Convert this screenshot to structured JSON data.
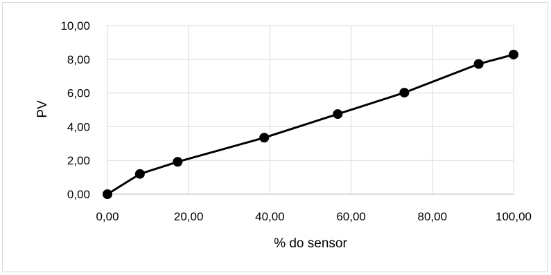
{
  "chart_data": {
    "type": "scatter",
    "title": "",
    "xlabel": "% do sensor",
    "ylabel": "PV",
    "xlim": [
      0,
      100
    ],
    "ylim": [
      0,
      10
    ],
    "x_tick_labels": [
      "0,00",
      "20,00",
      "40,00",
      "60,00",
      "80,00",
      "100,00"
    ],
    "y_tick_labels": [
      "0,00",
      "2,00",
      "4,00",
      "6,00",
      "8,00",
      "10,00"
    ],
    "x_ticks": [
      0,
      20,
      40,
      60,
      80,
      100
    ],
    "y_ticks": [
      0,
      2,
      4,
      6,
      8,
      10
    ],
    "grid": "vertical-and-horizontal",
    "legend": "none",
    "series": [
      {
        "x": [
          0,
          8,
          17.3,
          38.6,
          56.7,
          73.1,
          91.4,
          100
        ],
        "y": [
          0,
          1.2,
          1.92,
          3.35,
          4.75,
          6.02,
          7.72,
          8.28
        ],
        "line_color": "#000000",
        "marker_color": "#000000",
        "marker": "circle"
      }
    ]
  }
}
